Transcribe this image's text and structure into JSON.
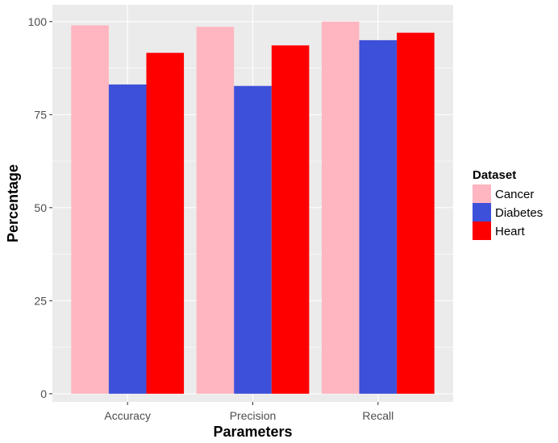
{
  "chart_data": {
    "type": "bar",
    "categories": [
      "Accuracy",
      "Precision",
      "Recall"
    ],
    "series": [
      {
        "name": "Cancer",
        "values": [
          99.0,
          98.6,
          100.0
        ],
        "color": "#ffb6c1"
      },
      {
        "name": "Diabetes",
        "values": [
          83.1,
          82.7,
          95.0
        ],
        "color": "#3d50d9"
      },
      {
        "name": "Heart",
        "values": [
          91.6,
          93.6,
          97.0
        ],
        "color": "#ff0000"
      }
    ],
    "xlabel": "Parameters",
    "ylabel": "Percentage",
    "ylim": [
      -2.2,
      104.5
    ],
    "yticks": [
      0,
      25,
      50,
      75,
      100
    ],
    "legend_title": "Dataset",
    "legend_position": "right",
    "grid": true,
    "panel_background": "#ebebeb",
    "grid_color": "#ffffff"
  }
}
